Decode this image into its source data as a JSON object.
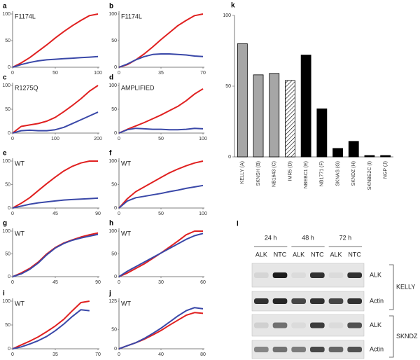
{
  "chart_data": [
    {
      "type": "line",
      "label": "a",
      "annotation": "F1174L",
      "x": [
        0,
        10,
        20,
        30,
        40,
        50,
        60,
        70,
        80,
        90,
        100
      ],
      "xlim": [
        0,
        100
      ],
      "xticks": [
        0,
        50,
        100
      ],
      "ylim": [
        0,
        100
      ],
      "yticks": [
        0,
        50,
        100
      ],
      "series": [
        {
          "color": "#e02020",
          "values": [
            0,
            8,
            18,
            30,
            42,
            55,
            67,
            78,
            88,
            97,
            100
          ]
        },
        {
          "color": "#3a48a8",
          "values": [
            0,
            5,
            9,
            12,
            14,
            15,
            16,
            17,
            18,
            19,
            20
          ]
        }
      ]
    },
    {
      "type": "line",
      "label": "b",
      "annotation": "F1174L",
      "x": [
        0,
        7,
        14,
        21,
        28,
        35,
        42,
        49,
        56,
        63,
        70
      ],
      "xlim": [
        0,
        70
      ],
      "xticks": [
        0,
        35,
        70
      ],
      "ylim": [
        0,
        100
      ],
      "yticks": [
        0,
        50,
        100
      ],
      "series": [
        {
          "color": "#e02020",
          "values": [
            0,
            5,
            14,
            25,
            38,
            52,
            65,
            78,
            88,
            97,
            100
          ]
        },
        {
          "color": "#3a48a8",
          "values": [
            0,
            6,
            14,
            20,
            24,
            25,
            25,
            24,
            23,
            21,
            20
          ]
        }
      ]
    },
    {
      "type": "line",
      "label": "c",
      "annotation": "R1275Q",
      "x": [
        0,
        20,
        40,
        60,
        80,
        100,
        120,
        140,
        160,
        180,
        200
      ],
      "xlim": [
        0,
        200
      ],
      "xticks": [
        0,
        100,
        200
      ],
      "ylim": [
        0,
        100
      ],
      "yticks": [
        0,
        50,
        100
      ],
      "series": [
        {
          "color": "#e02020",
          "values": [
            0,
            14,
            17,
            20,
            25,
            33,
            45,
            58,
            72,
            88,
            100
          ]
        },
        {
          "color": "#3a48a8",
          "values": [
            0,
            5,
            6,
            5,
            5,
            7,
            12,
            20,
            28,
            36,
            44
          ]
        }
      ]
    },
    {
      "type": "line",
      "label": "d",
      "annotation": "AMPLIFIED",
      "x": [
        0,
        10,
        20,
        30,
        40,
        50,
        60,
        70,
        80,
        90,
        100
      ],
      "xlim": [
        0,
        100
      ],
      "xticks": [
        0,
        50,
        100
      ],
      "ylim": [
        0,
        100
      ],
      "yticks": [
        0,
        50,
        100
      ],
      "series": [
        {
          "color": "#e02020",
          "values": [
            0,
            8,
            15,
            22,
            30,
            38,
            47,
            56,
            68,
            82,
            93
          ]
        },
        {
          "color": "#3a48a8",
          "values": [
            0,
            7,
            10,
            9,
            8,
            8,
            7,
            7,
            8,
            10,
            9
          ]
        }
      ]
    },
    {
      "type": "line",
      "label": "e",
      "annotation": "WT",
      "x": [
        0,
        9,
        18,
        27,
        36,
        45,
        54,
        63,
        72,
        81,
        90
      ],
      "xlim": [
        0,
        90
      ],
      "xticks": [
        0,
        45,
        90
      ],
      "ylim": [
        0,
        100
      ],
      "yticks": [
        0,
        50,
        100
      ],
      "series": [
        {
          "color": "#e02020",
          "values": [
            0,
            10,
            22,
            37,
            52,
            66,
            79,
            89,
            96,
            100,
            100
          ]
        },
        {
          "color": "#3a48a8",
          "values": [
            0,
            4,
            8,
            11,
            13,
            15,
            17,
            18,
            19,
            20,
            21
          ]
        }
      ]
    },
    {
      "type": "line",
      "label": "f",
      "annotation": "WT",
      "x": [
        0,
        10,
        20,
        30,
        40,
        50,
        60,
        70,
        80,
        90,
        100
      ],
      "xlim": [
        0,
        100
      ],
      "xticks": [
        0,
        50,
        100
      ],
      "ylim": [
        0,
        100
      ],
      "yticks": [
        0,
        50,
        100
      ],
      "series": [
        {
          "color": "#e02020",
          "values": [
            0,
            20,
            35,
            45,
            55,
            65,
            75,
            83,
            90,
            96,
            100
          ]
        },
        {
          "color": "#3a48a8",
          "values": [
            0,
            15,
            22,
            25,
            28,
            31,
            35,
            38,
            42,
            45,
            48
          ]
        }
      ]
    },
    {
      "type": "line",
      "label": "g",
      "annotation": "WT",
      "x": [
        0,
        9,
        18,
        27,
        36,
        45,
        54,
        63,
        72,
        81,
        90
      ],
      "xlim": [
        0,
        90
      ],
      "xticks": [
        0,
        45,
        90
      ],
      "ylim": [
        0,
        100
      ],
      "yticks": [
        0,
        50,
        100
      ],
      "series": [
        {
          "color": "#e02020",
          "values": [
            0,
            8,
            18,
            32,
            50,
            64,
            74,
            81,
            87,
            92,
            96
          ]
        },
        {
          "color": "#3a48a8",
          "values": [
            0,
            6,
            16,
            30,
            48,
            63,
            73,
            80,
            85,
            89,
            93
          ]
        }
      ]
    },
    {
      "type": "line",
      "label": "h",
      "annotation": "WT",
      "x": [
        0,
        6,
        12,
        18,
        24,
        30,
        36,
        42,
        48,
        54,
        60
      ],
      "xlim": [
        0,
        60
      ],
      "xticks": [
        0,
        30,
        60
      ],
      "ylim": [
        0,
        100
      ],
      "yticks": [
        0,
        50,
        100
      ],
      "series": [
        {
          "color": "#e02020",
          "values": [
            0,
            8,
            18,
            28,
            40,
            52,
            65,
            78,
            92,
            100,
            100
          ]
        },
        {
          "color": "#3a48a8",
          "values": [
            0,
            12,
            22,
            32,
            42,
            52,
            62,
            72,
            82,
            90,
            95
          ]
        }
      ]
    },
    {
      "type": "line",
      "label": "i",
      "annotation": "WT",
      "x": [
        0,
        7,
        14,
        21,
        28,
        35,
        42,
        49,
        56,
        63
      ],
      "xlim": [
        0,
        70
      ],
      "xticks": [
        0,
        35,
        70
      ],
      "ylim": [
        0,
        100
      ],
      "yticks": [
        0,
        50,
        100
      ],
      "series": [
        {
          "color": "#e02020",
          "values": [
            0,
            8,
            16,
            25,
            36,
            48,
            62,
            80,
            97,
            100
          ]
        },
        {
          "color": "#3a48a8",
          "values": [
            0,
            4,
            10,
            17,
            26,
            38,
            52,
            68,
            82,
            80
          ]
        }
      ]
    },
    {
      "type": "line",
      "label": "j",
      "annotation": "WT",
      "x": [
        0,
        8,
        16,
        24,
        32,
        40,
        48,
        56,
        64,
        72,
        80
      ],
      "xlim": [
        0,
        80
      ],
      "xticks": [
        0,
        40,
        80
      ],
      "ylim": [
        0,
        125
      ],
      "yticks": [
        0,
        50,
        125
      ],
      "series": [
        {
          "color": "#e02020",
          "values": [
            0,
            8,
            16,
            25,
            36,
            48,
            62,
            75,
            88,
            95,
            93
          ]
        },
        {
          "color": "#3a48a8",
          "values": [
            0,
            8,
            16,
            27,
            40,
            54,
            70,
            86,
            100,
            108,
            105
          ]
        }
      ]
    },
    {
      "type": "bar",
      "label": "k",
      "categories": [
        "KELLY (A)",
        "SKNSH (B)",
        "NB1643 (C)",
        "IMR5 (D)",
        "NBEBC1 (E)",
        "NB1771 (F)",
        "SKNAS (G)",
        "SKNDZ (H)",
        "SKNBE2C (I)",
        "NGP (J)"
      ],
      "values": [
        80,
        58,
        59,
        54,
        72,
        34,
        6,
        11,
        1,
        1
      ],
      "colors": [
        "#a6a6a6",
        "#a6a6a6",
        "#a6a6a6",
        "hatch",
        "#000000",
        "#000000",
        "#000000",
        "#000000",
        "#000000",
        "#000000"
      ],
      "ylim": [
        0,
        100
      ],
      "yticks": [
        0,
        50,
        100
      ]
    }
  ],
  "blot": {
    "label": "l",
    "times": [
      "24 h",
      "48 h",
      "72 h"
    ],
    "lanes": [
      "ALK",
      "NTC",
      "ALK",
      "NTC",
      "ALK",
      "NTC"
    ],
    "rows": [
      "ALK",
      "Actin",
      "ALK",
      "Actin"
    ],
    "groups": [
      "KELLY",
      "SKNDZ"
    ]
  }
}
